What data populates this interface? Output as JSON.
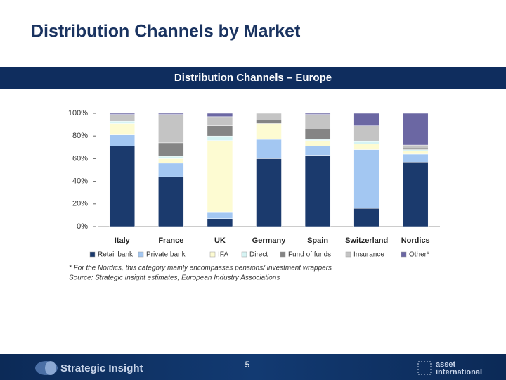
{
  "slide": {
    "title": "Distribution Channels by Market",
    "footnotes": [
      "* For the Nordics, this category mainly encompasses pensions/ investment wrappers",
      "Source: Strategic Insight estimates, European Industry Associations"
    ],
    "page_number": "5",
    "logo_left": "Strategic Insight",
    "logo_right": [
      "asset",
      "international"
    ]
  },
  "chart_data": {
    "type": "stacked_bar",
    "title": "Distribution Channels – Europe",
    "categories": [
      "Italy",
      "France",
      "UK",
      "Germany",
      "Spain",
      "Switzerland",
      "Nordics"
    ],
    "series": [
      {
        "name": "Retail bank",
        "color": "#1b3a6d",
        "values": [
          71,
          44,
          7,
          60,
          63,
          16,
          57
        ]
      },
      {
        "name": "Private bank",
        "color": "#a3c7f2",
        "values": [
          10,
          12,
          6,
          17,
          8,
          52,
          7
        ]
      },
      {
        "name": "IFA",
        "color": "#fdfbd2",
        "values": [
          10,
          4,
          63,
          14,
          5,
          5,
          3
        ]
      },
      {
        "name": "Direct",
        "color": "#d6f4f4",
        "values": [
          2,
          2,
          4,
          0,
          1,
          2,
          1
        ]
      },
      {
        "name": "Fund of funds",
        "color": "#858585",
        "values": [
          0,
          12,
          9,
          3,
          9,
          0,
          1
        ]
      },
      {
        "name": "Insurance",
        "color": "#c4c4c4",
        "values": [
          6,
          25,
          8,
          6,
          13,
          14,
          3
        ]
      },
      {
        "name": "Other*",
        "color": "#6b67a3",
        "values": [
          1,
          1,
          3,
          0,
          1,
          11,
          28
        ]
      }
    ],
    "ylim": [
      0,
      100
    ],
    "yticks": [
      {
        "value": 0,
        "label": "0%"
      },
      {
        "value": 20,
        "label": "20%"
      },
      {
        "value": 40,
        "label": "40%"
      },
      {
        "value": 60,
        "label": "60%"
      },
      {
        "value": 80,
        "label": "80%"
      },
      {
        "value": 100,
        "label": "100%"
      }
    ],
    "grid": false,
    "legend": "bottom"
  }
}
